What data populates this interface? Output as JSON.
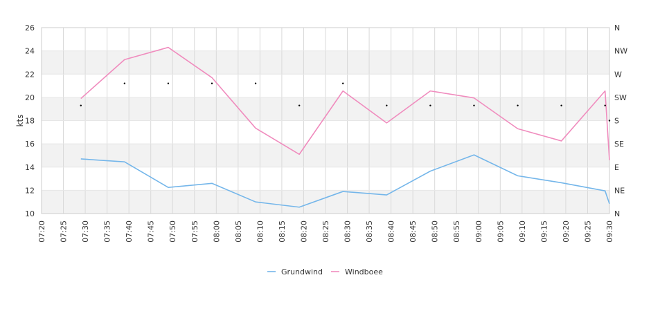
{
  "chart_data": {
    "type": "line",
    "ylabel": "kts",
    "ylim": [
      10,
      26
    ],
    "y_ticks": [
      10,
      12,
      14,
      16,
      18,
      20,
      22,
      24,
      26
    ],
    "xlim": [
      "07:20",
      "09:30"
    ],
    "x_ticks": [
      "07:20",
      "07:25",
      "07:30",
      "07:35",
      "07:40",
      "07:45",
      "07:50",
      "07:55",
      "08:00",
      "08:05",
      "08:10",
      "08:15",
      "08:20",
      "08:25",
      "08:30",
      "08:35",
      "08:40",
      "08:45",
      "08:50",
      "08:55",
      "09:00",
      "09:05",
      "09:10",
      "09:15",
      "09:20",
      "09:25",
      "09:30"
    ],
    "right_axis_labels": [
      "N",
      "NE",
      "E",
      "SE",
      "S",
      "SW",
      "W",
      "NW",
      "N"
    ],
    "grid": true,
    "legend_position": "bottom",
    "series": [
      {
        "name": "Grundwind",
        "color": "#74b6ea",
        "points": [
          {
            "x": "07:29",
            "y": 14.7
          },
          {
            "x": "07:39",
            "y": 14.45
          },
          {
            "x": "07:49",
            "y": 12.25
          },
          {
            "x": "07:59",
            "y": 12.6
          },
          {
            "x": "08:09",
            "y": 11.0
          },
          {
            "x": "08:19",
            "y": 10.55
          },
          {
            "x": "08:29",
            "y": 11.9
          },
          {
            "x": "08:39",
            "y": 11.6
          },
          {
            "x": "08:49",
            "y": 13.65
          },
          {
            "x": "08:59",
            "y": 15.05
          },
          {
            "x": "09:09",
            "y": 13.25
          },
          {
            "x": "09:19",
            "y": 12.65
          },
          {
            "x": "09:29",
            "y": 11.95
          },
          {
            "x": "09:30",
            "y": 10.85
          }
        ]
      },
      {
        "name": "Windboee",
        "color": "#f08cbe",
        "points": [
          {
            "x": "07:29",
            "y": 19.9
          },
          {
            "x": "07:39",
            "y": 23.25
          },
          {
            "x": "07:49",
            "y": 24.3
          },
          {
            "x": "07:59",
            "y": 21.7
          },
          {
            "x": "08:09",
            "y": 17.35
          },
          {
            "x": "08:19",
            "y": 15.1
          },
          {
            "x": "08:29",
            "y": 20.55
          },
          {
            "x": "08:39",
            "y": 17.8
          },
          {
            "x": "08:49",
            "y": 20.55
          },
          {
            "x": "08:59",
            "y": 19.95
          },
          {
            "x": "09:09",
            "y": 17.3
          },
          {
            "x": "09:19",
            "y": 16.25
          },
          {
            "x": "09:29",
            "y": 20.55
          },
          {
            "x": "09:30",
            "y": 14.6
          }
        ]
      }
    ],
    "direction_markers": [
      {
        "x": "07:29",
        "direction": "SW"
      },
      {
        "x": "07:39",
        "direction": "W"
      },
      {
        "x": "07:49",
        "direction": "W"
      },
      {
        "x": "07:59",
        "direction": "W"
      },
      {
        "x": "08:09",
        "direction": "W"
      },
      {
        "x": "08:19",
        "direction": "SW"
      },
      {
        "x": "08:29",
        "direction": "W"
      },
      {
        "x": "08:39",
        "direction": "SW"
      },
      {
        "x": "08:49",
        "direction": "SW"
      },
      {
        "x": "08:59",
        "direction": "SW"
      },
      {
        "x": "09:09",
        "direction": "SW"
      },
      {
        "x": "09:19",
        "direction": "SW"
      },
      {
        "x": "09:29",
        "direction": "SW"
      },
      {
        "x": "09:30",
        "direction": "S"
      }
    ]
  },
  "legend": {
    "items": [
      {
        "label": "Grundwind",
        "color": "#74b6ea"
      },
      {
        "label": "Windboee",
        "color": "#f08cbe"
      }
    ]
  }
}
